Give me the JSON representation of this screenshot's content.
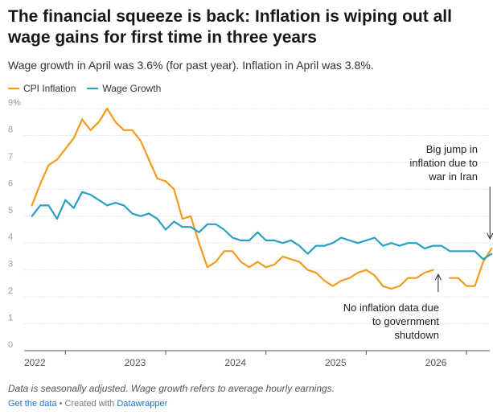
{
  "title": "The financial squeeze is back: Inflation is wiping out all wage gains for first time in three years",
  "subtitle": "Wage growth in April was 3.6% (for past year). Inflation in April was 3.8%.",
  "notes": "Data is seasonally adjusted. Wage growth refers to average hourly earnings.",
  "footer": {
    "get_data": "Get the data",
    "separator": " • Created with ",
    "tool": "Datawrapper"
  },
  "chart_data": {
    "type": "line",
    "title": "The financial squeeze is back: Inflation is wiping out all wage gains for first time in three years",
    "subtitle": "Wage growth in April was 3.6% (for past year). Inflation in April was 3.8%.",
    "xlabel": "",
    "ylabel": "",
    "x_range": [
      "2021-09",
      "2026-04"
    ],
    "ylim": [
      0,
      9
    ],
    "y_ticks": [
      "0",
      "1",
      "2",
      "3",
      "4",
      "5",
      "6",
      "7",
      "8",
      "9%"
    ],
    "x_ticks": [
      "2022",
      "2023",
      "2024",
      "2025",
      "2026"
    ],
    "grid": "horizontal",
    "legend": "top-left",
    "colors": {
      "cpi": "#f29b1d",
      "wage": "#2a9fc4"
    },
    "series": [
      {
        "name": "CPI Inflation",
        "color": "#f29b1d",
        "values": [
          [
            "2021-09",
            5.4
          ],
          [
            "2021-10",
            6.2
          ],
          [
            "2021-11",
            6.9
          ],
          [
            "2021-12",
            7.1
          ],
          [
            "2022-01",
            7.5
          ],
          [
            "2022-02",
            7.9
          ],
          [
            "2022-03",
            8.6
          ],
          [
            "2022-04",
            8.2
          ],
          [
            "2022-05",
            8.5
          ],
          [
            "2022-06",
            9.0
          ],
          [
            "2022-07",
            8.5
          ],
          [
            "2022-08",
            8.2
          ],
          [
            "2022-09",
            8.2
          ],
          [
            "2022-10",
            7.8
          ],
          [
            "2022-11",
            7.1
          ],
          [
            "2022-12",
            6.4
          ],
          [
            "2023-01",
            6.3
          ],
          [
            "2023-02",
            6.0
          ],
          [
            "2023-03",
            4.9
          ],
          [
            "2023-04",
            5.0
          ],
          [
            "2023-05",
            4.0
          ],
          [
            "2023-06",
            3.1
          ],
          [
            "2023-07",
            3.3
          ],
          [
            "2023-08",
            3.7
          ],
          [
            "2023-09",
            3.7
          ],
          [
            "2023-10",
            3.3
          ],
          [
            "2023-11",
            3.1
          ],
          [
            "2023-12",
            3.3
          ],
          [
            "2024-01",
            3.1
          ],
          [
            "2024-02",
            3.2
          ],
          [
            "2024-03",
            3.5
          ],
          [
            "2024-04",
            3.4
          ],
          [
            "2024-05",
            3.3
          ],
          [
            "2024-06",
            3.0
          ],
          [
            "2024-07",
            2.9
          ],
          [
            "2024-08",
            2.6
          ],
          [
            "2024-09",
            2.4
          ],
          [
            "2024-10",
            2.6
          ],
          [
            "2024-11",
            2.7
          ],
          [
            "2024-12",
            2.9
          ],
          [
            "2025-01",
            3.0
          ],
          [
            "2025-02",
            2.8
          ],
          [
            "2025-03",
            2.4
          ],
          [
            "2025-04",
            2.3
          ],
          [
            "2025-05",
            2.4
          ],
          [
            "2025-06",
            2.7
          ],
          [
            "2025-07",
            2.7
          ],
          [
            "2025-08",
            2.9
          ],
          [
            "2025-09",
            3.0
          ],
          [
            "2025-10",
            null
          ],
          [
            "2025-11",
            2.7
          ],
          [
            "2025-12",
            2.7
          ],
          [
            "2026-01",
            2.4
          ],
          [
            "2026-02",
            2.4
          ],
          [
            "2026-03",
            3.3
          ],
          [
            "2026-04",
            3.8
          ]
        ]
      },
      {
        "name": "Wage Growth",
        "color": "#2a9fc4",
        "values": [
          [
            "2021-09",
            5.0
          ],
          [
            "2021-10",
            5.4
          ],
          [
            "2021-11",
            5.4
          ],
          [
            "2021-12",
            4.9
          ],
          [
            "2022-01",
            5.6
          ],
          [
            "2022-02",
            5.3
          ],
          [
            "2022-03",
            5.9
          ],
          [
            "2022-04",
            5.8
          ],
          [
            "2022-05",
            5.6
          ],
          [
            "2022-06",
            5.4
          ],
          [
            "2022-07",
            5.5
          ],
          [
            "2022-08",
            5.4
          ],
          [
            "2022-09",
            5.1
          ],
          [
            "2022-10",
            5.0
          ],
          [
            "2022-11",
            5.1
          ],
          [
            "2022-12",
            4.9
          ],
          [
            "2023-01",
            4.5
          ],
          [
            "2023-02",
            4.8
          ],
          [
            "2023-03",
            4.6
          ],
          [
            "2023-04",
            4.6
          ],
          [
            "2023-05",
            4.4
          ],
          [
            "2023-06",
            4.7
          ],
          [
            "2023-07",
            4.7
          ],
          [
            "2023-08",
            4.5
          ],
          [
            "2023-09",
            4.2
          ],
          [
            "2023-10",
            4.1
          ],
          [
            "2023-11",
            4.1
          ],
          [
            "2023-12",
            4.4
          ],
          [
            "2024-01",
            4.1
          ],
          [
            "2024-02",
            4.1
          ],
          [
            "2024-03",
            4.0
          ],
          [
            "2024-04",
            4.1
          ],
          [
            "2024-05",
            3.9
          ],
          [
            "2024-06",
            3.6
          ],
          [
            "2024-07",
            3.9
          ],
          [
            "2024-08",
            3.9
          ],
          [
            "2024-09",
            4.0
          ],
          [
            "2024-10",
            4.2
          ],
          [
            "2024-11",
            4.1
          ],
          [
            "2024-12",
            4.0
          ],
          [
            "2025-01",
            4.1
          ],
          [
            "2025-02",
            4.2
          ],
          [
            "2025-03",
            3.9
          ],
          [
            "2025-04",
            4.0
          ],
          [
            "2025-05",
            3.9
          ],
          [
            "2025-06",
            4.0
          ],
          [
            "2025-07",
            4.0
          ],
          [
            "2025-08",
            3.8
          ],
          [
            "2025-09",
            3.9
          ],
          [
            "2025-10",
            3.9
          ],
          [
            "2025-11",
            3.7
          ],
          [
            "2025-12",
            3.7
          ],
          [
            "2026-01",
            3.7
          ],
          [
            "2026-02",
            3.7
          ],
          [
            "2026-03",
            3.4
          ],
          [
            "2026-04",
            3.6
          ]
        ]
      }
    ],
    "annotations": [
      {
        "name": "iran",
        "text": [
          "Big jump in",
          "inflation due to",
          "war in Iran"
        ],
        "x": "2026-04",
        "y": 3.8
      },
      {
        "name": "shutdown",
        "text": [
          "No inflation data due",
          "to government",
          "shutdown"
        ],
        "x": "2025-10",
        "y": 2.9
      }
    ]
  }
}
